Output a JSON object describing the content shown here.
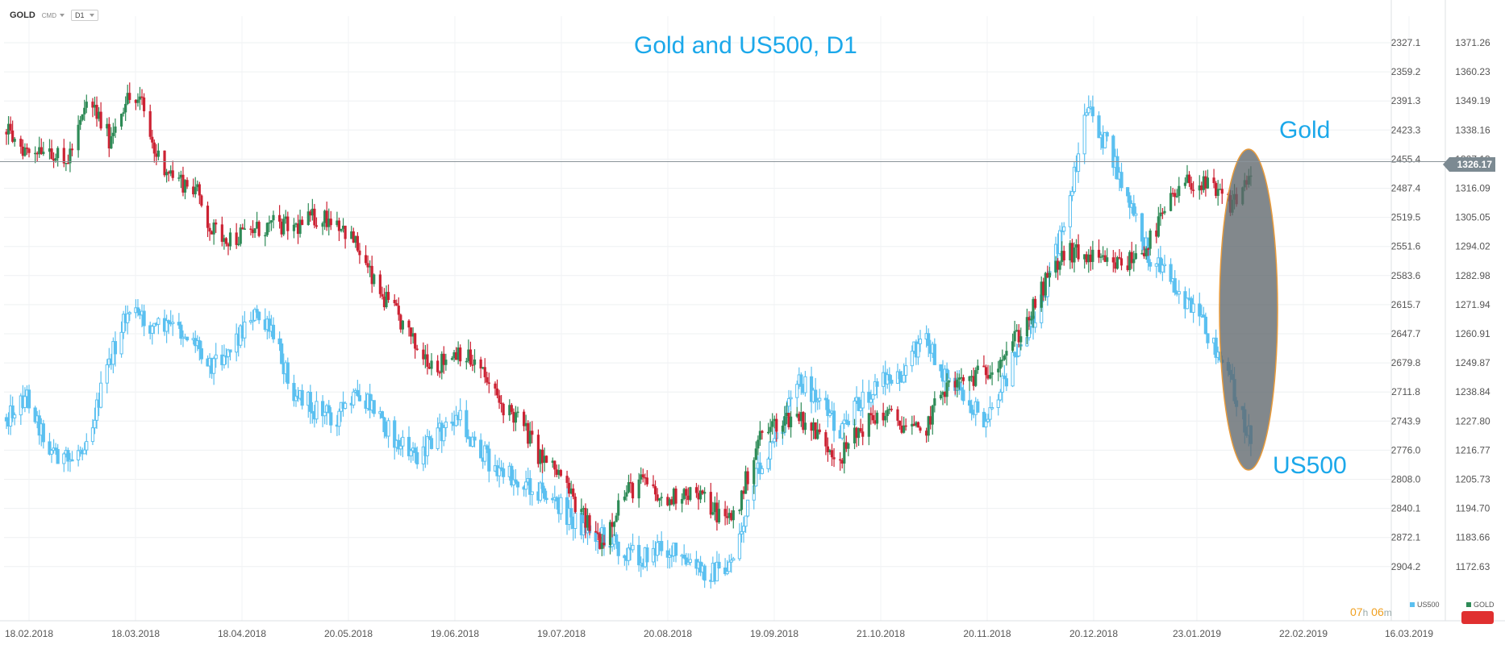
{
  "toolbar": {
    "symbol": "GOLD",
    "type_label": "CMD",
    "timeframe": "D1"
  },
  "chart_data": {
    "type": "candlestick",
    "title": "Gold and US500, D1",
    "x_ticks": [
      "18.02.2018",
      "18.03.2018",
      "18.04.2018",
      "20.05.2018",
      "19.06.2018",
      "19.07.2018",
      "20.08.2018",
      "19.09.2018",
      "21.10.2018",
      "20.11.2018",
      "20.12.2018",
      "23.01.2019",
      "22.02.2019",
      "16.03.2019"
    ],
    "us500_axis": {
      "label": "US500",
      "ticks": [
        2327.1,
        2359.2,
        2391.3,
        2423.3,
        2455.4,
        2487.4,
        2519.5,
        2551.6,
        2583.6,
        2615.7,
        2647.7,
        2679.8,
        2711.8,
        2743.9,
        2776.0,
        2808.0,
        2840.1,
        2872.1,
        2904.2
      ],
      "inverted": true
    },
    "gold_axis": {
      "label": "GOLD",
      "ticks": [
        1371.26,
        1360.23,
        1349.19,
        1338.16,
        1327.13,
        1316.09,
        1305.05,
        1294.02,
        1282.98,
        1271.94,
        1260.91,
        1249.87,
        1238.84,
        1227.8,
        1216.77,
        1205.73,
        1194.7,
        1183.66,
        1172.63
      ]
    },
    "current_price": "1326.17",
    "series": [
      {
        "name": "GOLD",
        "color_up": "#2e8b57",
        "color_down": "#cc2233",
        "anchors": [
          [
            0,
            1337.5
          ],
          [
            10,
            1330
          ],
          [
            20,
            1333
          ],
          [
            28,
            1324
          ],
          [
            34,
            1335
          ],
          [
            40,
            1350
          ],
          [
            50,
            1335
          ],
          [
            58,
            1350
          ],
          [
            66,
            1348
          ],
          [
            72,
            1330
          ],
          [
            82,
            1320
          ],
          [
            92,
            1316
          ],
          [
            100,
            1300
          ],
          [
            110,
            1297
          ],
          [
            120,
            1300
          ],
          [
            130,
            1302
          ],
          [
            140,
            1301
          ],
          [
            150,
            1305
          ],
          [
            160,
            1305
          ],
          [
            170,
            1295
          ],
          [
            180,
            1278
          ],
          [
            190,
            1268
          ],
          [
            200,
            1255
          ],
          [
            210,
            1249
          ],
          [
            220,
            1255
          ],
          [
            230,
            1248
          ],
          [
            240,
            1235
          ],
          [
            250,
            1228
          ],
          [
            260,
            1214
          ],
          [
            270,
            1207
          ],
          [
            280,
            1192
          ],
          [
            290,
            1182
          ],
          [
            300,
            1200
          ],
          [
            310,
            1205
          ],
          [
            320,
            1196
          ],
          [
            330,
            1202
          ],
          [
            340,
            1198
          ],
          [
            350,
            1190
          ],
          [
            356,
            1194
          ],
          [
            366,
            1221
          ],
          [
            376,
            1228
          ],
          [
            386,
            1230
          ],
          [
            396,
            1222
          ],
          [
            406,
            1214
          ],
          [
            416,
            1225
          ],
          [
            426,
            1231
          ],
          [
            436,
            1227
          ],
          [
            446,
            1222
          ],
          [
            456,
            1240
          ],
          [
            466,
            1243
          ],
          [
            476,
            1246
          ],
          [
            486,
            1254
          ],
          [
            496,
            1264
          ],
          [
            506,
            1280
          ],
          [
            516,
            1292
          ],
          [
            526,
            1290
          ],
          [
            536,
            1287
          ],
          [
            546,
            1288
          ],
          [
            556,
            1295
          ],
          [
            566,
            1310
          ],
          [
            576,
            1319
          ],
          [
            586,
            1316
          ],
          [
            596,
            1310
          ],
          [
            602,
            1316
          ],
          [
            608,
            1326
          ]
        ]
      },
      {
        "name": "US500",
        "color": "#5bc0f0",
        "anchors": [
          [
            0,
            2740
          ],
          [
            10,
            2715
          ],
          [
            20,
            2770
          ],
          [
            30,
            2790
          ],
          [
            40,
            2760
          ],
          [
            50,
            2680
          ],
          [
            60,
            2620
          ],
          [
            70,
            2640
          ],
          [
            80,
            2640
          ],
          [
            90,
            2650
          ],
          [
            100,
            2680
          ],
          [
            110,
            2660
          ],
          [
            120,
            2625
          ],
          [
            130,
            2650
          ],
          [
            140,
            2710
          ],
          [
            150,
            2730
          ],
          [
            160,
            2740
          ],
          [
            170,
            2720
          ],
          [
            180,
            2730
          ],
          [
            190,
            2770
          ],
          [
            200,
            2780
          ],
          [
            210,
            2760
          ],
          [
            220,
            2740
          ],
          [
            230,
            2775
          ],
          [
            240,
            2800
          ],
          [
            250,
            2810
          ],
          [
            260,
            2820
          ],
          [
            270,
            2840
          ],
          [
            280,
            2860
          ],
          [
            290,
            2870
          ],
          [
            300,
            2885
          ],
          [
            310,
            2895
          ],
          [
            320,
            2880
          ],
          [
            330,
            2900
          ],
          [
            340,
            2910
          ],
          [
            350,
            2910
          ],
          [
            356,
            2880
          ],
          [
            366,
            2800
          ],
          [
            376,
            2760
          ],
          [
            386,
            2700
          ],
          [
            396,
            2720
          ],
          [
            406,
            2760
          ],
          [
            416,
            2720
          ],
          [
            426,
            2700
          ],
          [
            436,
            2690
          ],
          [
            446,
            2650
          ],
          [
            456,
            2690
          ],
          [
            466,
            2720
          ],
          [
            476,
            2740
          ],
          [
            486,
            2700
          ],
          [
            496,
            2650
          ],
          [
            506,
            2600
          ],
          [
            516,
            2520
          ],
          [
            526,
            2400
          ],
          [
            536,
            2440
          ],
          [
            546,
            2500
          ],
          [
            556,
            2560
          ],
          [
            566,
            2580
          ],
          [
            576,
            2620
          ],
          [
            586,
            2650
          ],
          [
            596,
            2700
          ],
          [
            602,
            2740
          ],
          [
            608,
            2775
          ]
        ]
      }
    ],
    "annotations": [
      "Gold",
      "US500"
    ],
    "timer": {
      "hours": "07",
      "h": "h",
      "minutes": "06",
      "m": "m"
    },
    "legend": [
      {
        "name": "US500",
        "color": "#5bc0f0"
      },
      {
        "name": "GOLD",
        "color": "#2e8b57"
      }
    ]
  }
}
